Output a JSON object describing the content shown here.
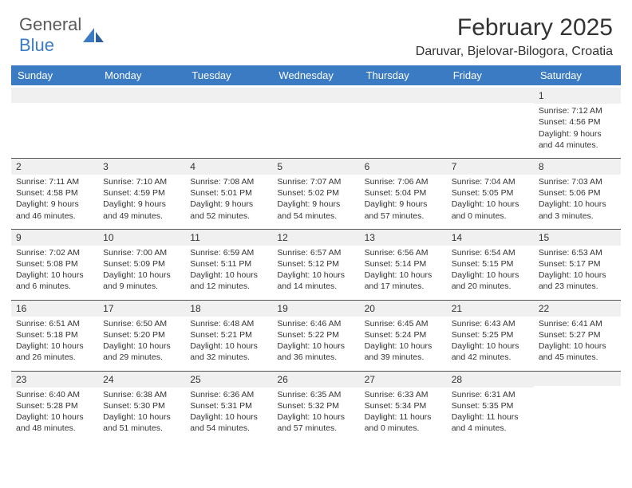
{
  "logo": {
    "word1": "General",
    "word2": "Blue"
  },
  "title": "February 2025",
  "location": "Daruvar, Bjelovar-Bilogora, Croatia",
  "colors": {
    "header_bg": "#3b7bc4",
    "header_text": "#ffffff",
    "daynum_bg": "#f0f0f0",
    "border": "#555555",
    "body_text": "#333333",
    "logo_gray": "#5a5a5a",
    "logo_blue": "#3b7bc4"
  },
  "day_headers": [
    "Sunday",
    "Monday",
    "Tuesday",
    "Wednesday",
    "Thursday",
    "Friday",
    "Saturday"
  ],
  "weeks": [
    [
      {
        "num": "",
        "sunrise": "",
        "sunset": "",
        "daylight": ""
      },
      {
        "num": "",
        "sunrise": "",
        "sunset": "",
        "daylight": ""
      },
      {
        "num": "",
        "sunrise": "",
        "sunset": "",
        "daylight": ""
      },
      {
        "num": "",
        "sunrise": "",
        "sunset": "",
        "daylight": ""
      },
      {
        "num": "",
        "sunrise": "",
        "sunset": "",
        "daylight": ""
      },
      {
        "num": "",
        "sunrise": "",
        "sunset": "",
        "daylight": ""
      },
      {
        "num": "1",
        "sunrise": "Sunrise: 7:12 AM",
        "sunset": "Sunset: 4:56 PM",
        "daylight": "Daylight: 9 hours and 44 minutes."
      }
    ],
    [
      {
        "num": "2",
        "sunrise": "Sunrise: 7:11 AM",
        "sunset": "Sunset: 4:58 PM",
        "daylight": "Daylight: 9 hours and 46 minutes."
      },
      {
        "num": "3",
        "sunrise": "Sunrise: 7:10 AM",
        "sunset": "Sunset: 4:59 PM",
        "daylight": "Daylight: 9 hours and 49 minutes."
      },
      {
        "num": "4",
        "sunrise": "Sunrise: 7:08 AM",
        "sunset": "Sunset: 5:01 PM",
        "daylight": "Daylight: 9 hours and 52 minutes."
      },
      {
        "num": "5",
        "sunrise": "Sunrise: 7:07 AM",
        "sunset": "Sunset: 5:02 PM",
        "daylight": "Daylight: 9 hours and 54 minutes."
      },
      {
        "num": "6",
        "sunrise": "Sunrise: 7:06 AM",
        "sunset": "Sunset: 5:04 PM",
        "daylight": "Daylight: 9 hours and 57 minutes."
      },
      {
        "num": "7",
        "sunrise": "Sunrise: 7:04 AM",
        "sunset": "Sunset: 5:05 PM",
        "daylight": "Daylight: 10 hours and 0 minutes."
      },
      {
        "num": "8",
        "sunrise": "Sunrise: 7:03 AM",
        "sunset": "Sunset: 5:06 PM",
        "daylight": "Daylight: 10 hours and 3 minutes."
      }
    ],
    [
      {
        "num": "9",
        "sunrise": "Sunrise: 7:02 AM",
        "sunset": "Sunset: 5:08 PM",
        "daylight": "Daylight: 10 hours and 6 minutes."
      },
      {
        "num": "10",
        "sunrise": "Sunrise: 7:00 AM",
        "sunset": "Sunset: 5:09 PM",
        "daylight": "Daylight: 10 hours and 9 minutes."
      },
      {
        "num": "11",
        "sunrise": "Sunrise: 6:59 AM",
        "sunset": "Sunset: 5:11 PM",
        "daylight": "Daylight: 10 hours and 12 minutes."
      },
      {
        "num": "12",
        "sunrise": "Sunrise: 6:57 AM",
        "sunset": "Sunset: 5:12 PM",
        "daylight": "Daylight: 10 hours and 14 minutes."
      },
      {
        "num": "13",
        "sunrise": "Sunrise: 6:56 AM",
        "sunset": "Sunset: 5:14 PM",
        "daylight": "Daylight: 10 hours and 17 minutes."
      },
      {
        "num": "14",
        "sunrise": "Sunrise: 6:54 AM",
        "sunset": "Sunset: 5:15 PM",
        "daylight": "Daylight: 10 hours and 20 minutes."
      },
      {
        "num": "15",
        "sunrise": "Sunrise: 6:53 AM",
        "sunset": "Sunset: 5:17 PM",
        "daylight": "Daylight: 10 hours and 23 minutes."
      }
    ],
    [
      {
        "num": "16",
        "sunrise": "Sunrise: 6:51 AM",
        "sunset": "Sunset: 5:18 PM",
        "daylight": "Daylight: 10 hours and 26 minutes."
      },
      {
        "num": "17",
        "sunrise": "Sunrise: 6:50 AM",
        "sunset": "Sunset: 5:20 PM",
        "daylight": "Daylight: 10 hours and 29 minutes."
      },
      {
        "num": "18",
        "sunrise": "Sunrise: 6:48 AM",
        "sunset": "Sunset: 5:21 PM",
        "daylight": "Daylight: 10 hours and 32 minutes."
      },
      {
        "num": "19",
        "sunrise": "Sunrise: 6:46 AM",
        "sunset": "Sunset: 5:22 PM",
        "daylight": "Daylight: 10 hours and 36 minutes."
      },
      {
        "num": "20",
        "sunrise": "Sunrise: 6:45 AM",
        "sunset": "Sunset: 5:24 PM",
        "daylight": "Daylight: 10 hours and 39 minutes."
      },
      {
        "num": "21",
        "sunrise": "Sunrise: 6:43 AM",
        "sunset": "Sunset: 5:25 PM",
        "daylight": "Daylight: 10 hours and 42 minutes."
      },
      {
        "num": "22",
        "sunrise": "Sunrise: 6:41 AM",
        "sunset": "Sunset: 5:27 PM",
        "daylight": "Daylight: 10 hours and 45 minutes."
      }
    ],
    [
      {
        "num": "23",
        "sunrise": "Sunrise: 6:40 AM",
        "sunset": "Sunset: 5:28 PM",
        "daylight": "Daylight: 10 hours and 48 minutes."
      },
      {
        "num": "24",
        "sunrise": "Sunrise: 6:38 AM",
        "sunset": "Sunset: 5:30 PM",
        "daylight": "Daylight: 10 hours and 51 minutes."
      },
      {
        "num": "25",
        "sunrise": "Sunrise: 6:36 AM",
        "sunset": "Sunset: 5:31 PM",
        "daylight": "Daylight: 10 hours and 54 minutes."
      },
      {
        "num": "26",
        "sunrise": "Sunrise: 6:35 AM",
        "sunset": "Sunset: 5:32 PM",
        "daylight": "Daylight: 10 hours and 57 minutes."
      },
      {
        "num": "27",
        "sunrise": "Sunrise: 6:33 AM",
        "sunset": "Sunset: 5:34 PM",
        "daylight": "Daylight: 11 hours and 0 minutes."
      },
      {
        "num": "28",
        "sunrise": "Sunrise: 6:31 AM",
        "sunset": "Sunset: 5:35 PM",
        "daylight": "Daylight: 11 hours and 4 minutes."
      },
      {
        "num": "",
        "sunrise": "",
        "sunset": "",
        "daylight": ""
      }
    ]
  ]
}
